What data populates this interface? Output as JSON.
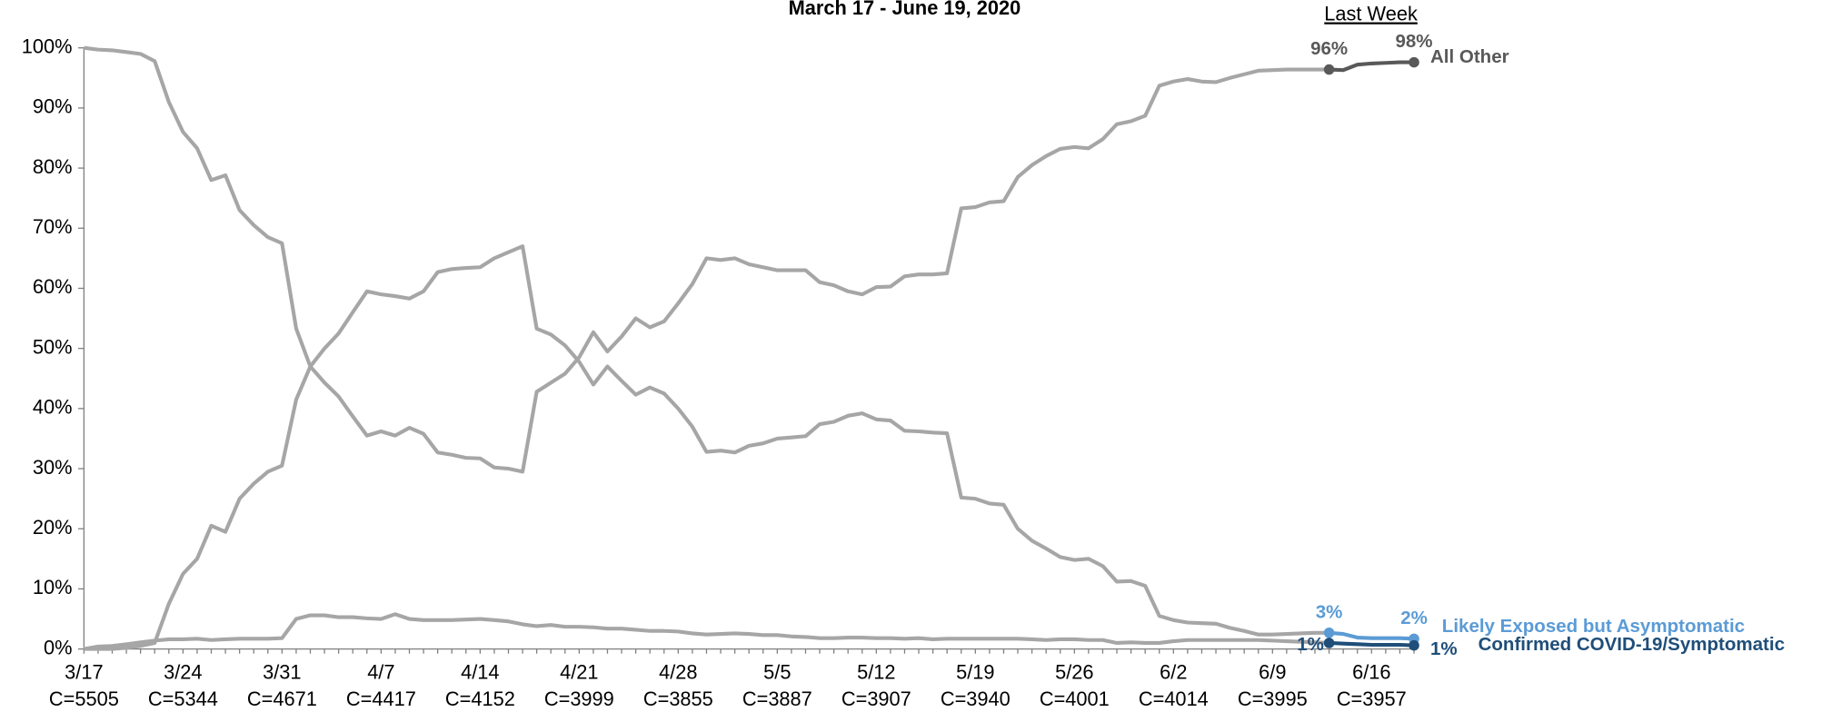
{
  "chart_data": {
    "type": "line",
    "title": "March 17 - June 19, 2020",
    "highlight_title": "Last Week",
    "highlight_start": 88,
    "history_color": "#a6a6a6",
    "categories": [
      "3/17",
      null,
      null,
      null,
      null,
      null,
      null,
      "3/24",
      null,
      null,
      null,
      null,
      null,
      null,
      "3/31",
      null,
      null,
      null,
      null,
      null,
      null,
      "4/7",
      null,
      null,
      null,
      null,
      null,
      null,
      "4/14",
      null,
      null,
      null,
      null,
      null,
      null,
      "4/21",
      null,
      null,
      null,
      null,
      null,
      null,
      "4/28",
      null,
      null,
      null,
      null,
      null,
      null,
      "5/5",
      null,
      null,
      null,
      null,
      null,
      null,
      "5/12",
      null,
      null,
      null,
      null,
      null,
      null,
      "5/19",
      null,
      null,
      null,
      null,
      null,
      null,
      "5/26",
      null,
      null,
      null,
      null,
      null,
      null,
      "6/2",
      null,
      null,
      null,
      null,
      null,
      null,
      "6/9",
      null,
      null,
      null,
      null,
      null,
      null,
      "6/16",
      null,
      null,
      null
    ],
    "counts": [
      "C=5505",
      null,
      null,
      null,
      null,
      null,
      null,
      "C=5344",
      null,
      null,
      null,
      null,
      null,
      null,
      "C=4671",
      null,
      null,
      null,
      null,
      null,
      null,
      "C=4417",
      null,
      null,
      null,
      null,
      null,
      null,
      "C=4152",
      null,
      null,
      null,
      null,
      null,
      null,
      "C=3999",
      null,
      null,
      null,
      null,
      null,
      null,
      "C=3855",
      null,
      null,
      null,
      null,
      null,
      null,
      "C=3887",
      null,
      null,
      null,
      null,
      null,
      null,
      "C=3907",
      null,
      null,
      null,
      null,
      null,
      null,
      "C=3940",
      null,
      null,
      null,
      null,
      null,
      null,
      "C=4001",
      null,
      null,
      null,
      null,
      null,
      null,
      "C=4014",
      null,
      null,
      null,
      null,
      null,
      null,
      "C=3995",
      null,
      null,
      null,
      null,
      null,
      null,
      "C=3957",
      null,
      null,
      null
    ],
    "ylim": [
      0,
      100
    ],
    "yticks": [
      {
        "value": 0,
        "label": "0%"
      },
      {
        "value": 10,
        "label": "10%"
      },
      {
        "value": 20,
        "label": "20%"
      },
      {
        "value": 30,
        "label": "30%"
      },
      {
        "value": 40,
        "label": "40%"
      },
      {
        "value": 50,
        "label": "50%"
      },
      {
        "value": 60,
        "label": "60%"
      },
      {
        "value": 70,
        "label": "70%"
      },
      {
        "value": 80,
        "label": "80%"
      },
      {
        "value": 90,
        "label": "90%"
      },
      {
        "value": 100,
        "label": "100%"
      }
    ],
    "series": [
      {
        "name": "All Other",
        "color": "#595959",
        "values": [
          100,
          99.7,
          99.6,
          99.3,
          99,
          97.8,
          91,
          86,
          83.3,
          78,
          78.8,
          73,
          70.5,
          68.5,
          67.5,
          53.3,
          47,
          44.3,
          42,
          38.7,
          35.5,
          36.2,
          35.5,
          36.8,
          35.8,
          32.7,
          32.3,
          31.8,
          31.7,
          30.2,
          30,
          29.5,
          42.8,
          44.3,
          45.8,
          48.5,
          52.7,
          49.5,
          52,
          55,
          53.5,
          54.5,
          57.5,
          60.7,
          65,
          64.7,
          65,
          64,
          63.5,
          63,
          63,
          63,
          61,
          60.5,
          59.5,
          59,
          60.2,
          60.3,
          62,
          62.3,
          62.3,
          62.5,
          73.3,
          73.5,
          74.3,
          74.5,
          78.5,
          80.5,
          82,
          83.2,
          83.5,
          83.3,
          84.8,
          87.3,
          87.8,
          88.7,
          93.7,
          94.4,
          94.8,
          94.4,
          94.3,
          95,
          95.6,
          96.2,
          96.3,
          96.4,
          96.4,
          96.4,
          96.4,
          96.3,
          97.2,
          97.4,
          97.5,
          97.6,
          97.6
        ],
        "value_labels": {
          "88": "96%",
          "94": "98%"
        }
      },
      {
        "name": "Likely Exposed but Asymptomatic",
        "color": "#5b9bd5",
        "values": [
          0,
          0,
          0,
          0.2,
          0.5,
          1,
          7.5,
          12.5,
          15,
          20.5,
          19.5,
          25,
          27.5,
          29.5,
          30.5,
          41.5,
          47,
          50,
          52.5,
          56,
          59.5,
          59,
          58.7,
          58.3,
          59.5,
          62.7,
          63.2,
          63.4,
          63.5,
          65,
          66,
          67,
          53.3,
          52.3,
          50.5,
          47.8,
          44,
          47,
          44.6,
          42.3,
          43.5,
          42.5,
          40,
          37,
          32.8,
          33,
          32.7,
          33.8,
          34.2,
          35,
          35.2,
          35.4,
          37.4,
          37.8,
          38.8,
          39.2,
          38.2,
          38,
          36.3,
          36.2,
          36,
          35.9,
          25.2,
          25,
          24.2,
          24,
          20,
          18,
          16.7,
          15.3,
          14.8,
          15,
          13.8,
          11.2,
          11.3,
          10.5,
          5.5,
          4.8,
          4.4,
          4.3,
          4.2,
          3.5,
          3,
          2.4,
          2.4,
          2.5,
          2.6,
          2.7,
          2.7,
          2.5,
          1.9,
          1.8,
          1.8,
          1.8,
          1.7
        ],
        "value_labels": {
          "88": "3%",
          "94": "2%"
        }
      },
      {
        "name": "Confirmed COVID-19/Symptomatic",
        "color": "#1f4e79",
        "values": [
          0,
          0.4,
          0.5,
          0.8,
          1.1,
          1.4,
          1.6,
          1.6,
          1.7,
          1.5,
          1.6,
          1.7,
          1.7,
          1.7,
          1.8,
          5,
          5.6,
          5.6,
          5.3,
          5.3,
          5.1,
          5,
          5.8,
          5,
          4.8,
          4.8,
          4.8,
          4.9,
          5,
          4.8,
          4.6,
          4.1,
          3.8,
          4,
          3.7,
          3.7,
          3.6,
          3.4,
          3.4,
          3.2,
          3,
          3,
          2.9,
          2.6,
          2.4,
          2.5,
          2.6,
          2.5,
          2.3,
          2.3,
          2.1,
          2,
          1.8,
          1.8,
          1.9,
          1.9,
          1.8,
          1.8,
          1.7,
          1.8,
          1.6,
          1.7,
          1.7,
          1.7,
          1.7,
          1.7,
          1.7,
          1.6,
          1.5,
          1.6,
          1.6,
          1.5,
          1.5,
          1,
          1.1,
          1,
          1,
          1.3,
          1.5,
          1.5,
          1.5,
          1.5,
          1.5,
          1.5,
          1.4,
          1.3,
          1.2,
          1.1,
          1,
          0.9,
          0.8,
          0.7,
          0.7,
          0.7,
          0.6
        ],
        "value_labels": {
          "88": "1%",
          "94": "1%"
        }
      }
    ]
  }
}
